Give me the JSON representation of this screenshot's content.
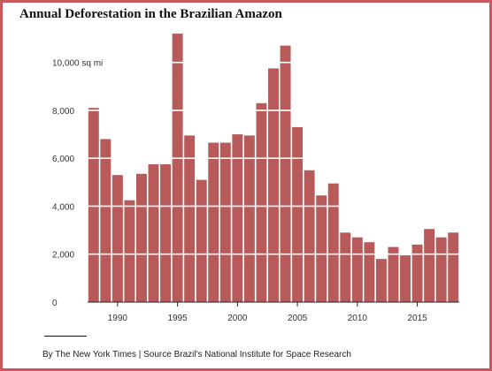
{
  "title": "Annual Deforestation in the Brazilian Amazon",
  "credit": "By The New York Times | Source  Brazil's National Institute for Space Research",
  "colors": {
    "bar": "#b85a5a",
    "frame": "#c9585c",
    "axis": "#222222",
    "text": "#333333"
  },
  "chart_data": {
    "type": "bar",
    "title": "Annual Deforestation in the Brazilian Amazon",
    "xlabel": "",
    "ylabel": "",
    "ylim": [
      0,
      11000
    ],
    "yticks": [
      0,
      2000,
      4000,
      6000,
      8000,
      10000
    ],
    "ytick_labels": [
      "0",
      "2,000",
      "4,000",
      "6,000",
      "8,000",
      "10,000 sq mi"
    ],
    "xticks": [
      1990,
      1995,
      2000,
      2005,
      2010,
      2015
    ],
    "xtick_labels": [
      "1990",
      "1995",
      "2000",
      "2005",
      "2010",
      "2015"
    ],
    "categories": [
      1988,
      1989,
      1990,
      1991,
      1992,
      1993,
      1994,
      1995,
      1996,
      1997,
      1998,
      1999,
      2000,
      2001,
      2002,
      2003,
      2004,
      2005,
      2006,
      2007,
      2008,
      2009,
      2010,
      2011,
      2012,
      2013,
      2014,
      2015,
      2016,
      2017,
      2018
    ],
    "values": [
      8100,
      6800,
      5300,
      4250,
      5350,
      5750,
      5750,
      11200,
      6950,
      5100,
      6650,
      6650,
      7000,
      6950,
      8300,
      9750,
      10700,
      7300,
      5500,
      4450,
      4950,
      2900,
      2700,
      2500,
      1800,
      2300,
      1950,
      2400,
      3050,
      2700,
      2900
    ],
    "grid": "white horizontal lines over bars"
  }
}
